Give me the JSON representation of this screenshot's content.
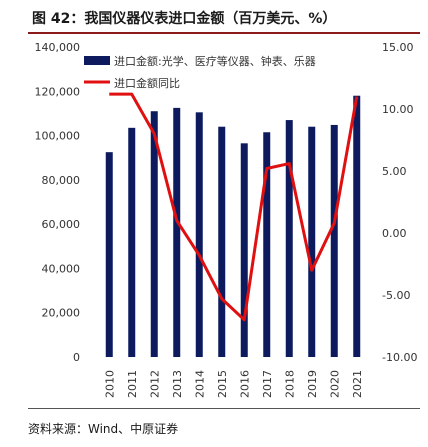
{
  "title": "图 42：我国仪器仪表进口金额（百万美元、%）",
  "source": "资料来源：Wind、中原证券",
  "chart_data": {
    "type": "bar+line",
    "categories": [
      "2010",
      "2011",
      "2012",
      "2013",
      "2014",
      "2015",
      "2016",
      "2017",
      "2018",
      "2019",
      "2020",
      "2021"
    ],
    "series": [
      {
        "name": "进口金额:光学、医疗等仪器、钟表、乐器",
        "type": "bar",
        "axis": "left",
        "color": "#0d1b5e",
        "values": [
          92500,
          103500,
          111000,
          112500,
          110500,
          104000,
          96500,
          101500,
          107000,
          104000,
          104800,
          118000
        ]
      },
      {
        "name": "进口金额同比",
        "type": "line",
        "axis": "right",
        "color": "#e01010",
        "values": [
          11.2,
          11.2,
          8.0,
          1.0,
          -1.8,
          -5.3,
          -7.0,
          5.2,
          5.6,
          -3.0,
          0.8,
          11.0
        ]
      }
    ],
    "left_axis": {
      "ylim": [
        0,
        140000
      ],
      "ticks": [
        "0",
        "20,000",
        "40,000",
        "60,000",
        "80,000",
        "100,000",
        "120,000",
        "140,000"
      ]
    },
    "right_axis": {
      "ylim": [
        -10,
        15
      ],
      "ticks": [
        "-10.00",
        "-5.00",
        "0.00",
        "5.00",
        "10.00",
        "15.00"
      ]
    },
    "legend_position": "top-left"
  }
}
